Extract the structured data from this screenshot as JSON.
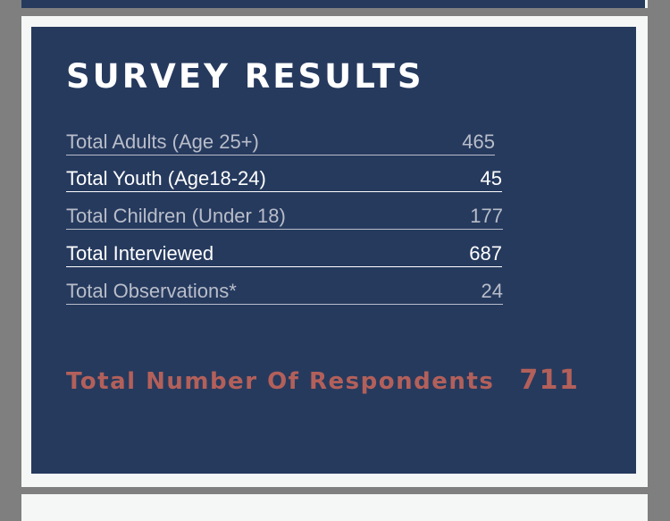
{
  "title": "SURVEY RESULTS",
  "rows": [
    {
      "label": "Total Adults (Age 25+)",
      "value": "465"
    },
    {
      "label": "Total Youth  (Age18-24)",
      "value": "45"
    },
    {
      "label": "Total Children (Under 18)",
      "value": "177"
    },
    {
      "label": "Total Interviewed",
      "value": "687"
    },
    {
      "label": "Total Observations*",
      "value": "24"
    }
  ],
  "respondents": {
    "label": "Total Number Of Respondents",
    "value": "711"
  },
  "colors": {
    "panel": "#263a5e",
    "accent": "#b3605a",
    "muted_text": "#b9bdc9"
  }
}
